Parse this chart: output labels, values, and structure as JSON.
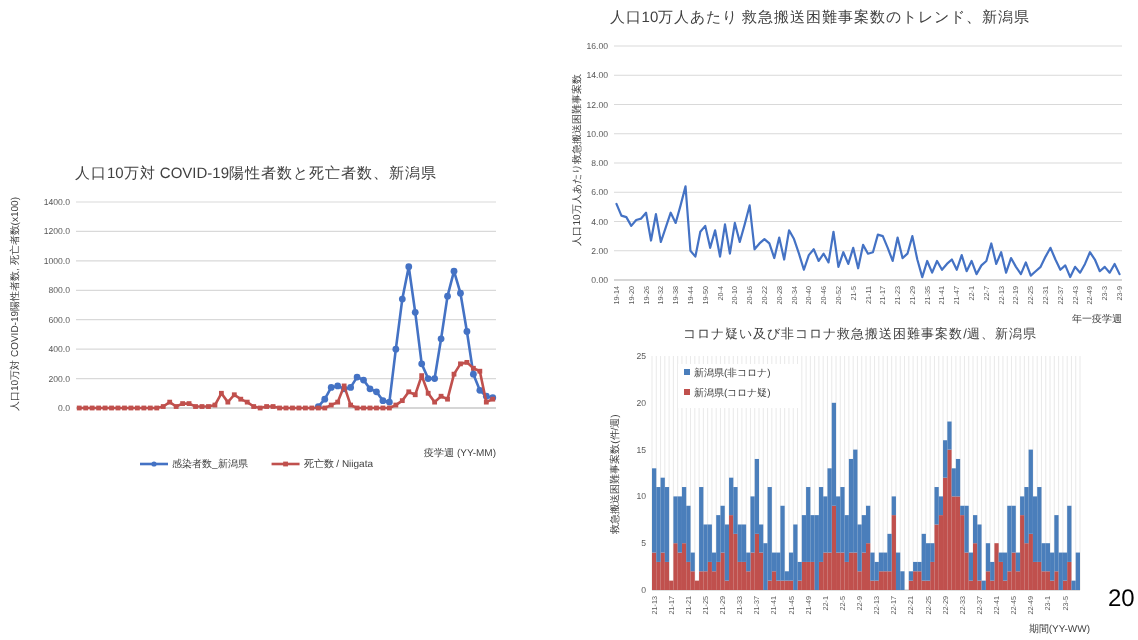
{
  "chart_data": [
    {
      "type": "line",
      "title": "人口10万対 COVID-19陽性者数と死亡者数、新潟県",
      "xlabel": "疫学週 (YY-MM)",
      "ylabel": "人口10万対 COVID-19陽性者数, 死亡者数(x100)",
      "categories": [
        null,
        null,
        null,
        null,
        null,
        null,
        null,
        null,
        null,
        null,
        null,
        null,
        null,
        null,
        null,
        null,
        null,
        null,
        null,
        null,
        null,
        null,
        null,
        null,
        null,
        null,
        null,
        null,
        null,
        null,
        null,
        null,
        null,
        null,
        null,
        null,
        null,
        null,
        null,
        null,
        null,
        null,
        null,
        null,
        null,
        null,
        null,
        null,
        null,
        null,
        null,
        null,
        null,
        null,
        null,
        null,
        null,
        null,
        null,
        null,
        null,
        null,
        null,
        null,
        null
      ],
      "series": [
        {
          "name": "感染者数_新潟県",
          "color": "#4472c4",
          "marker": "circle",
          "values": [
            null,
            null,
            null,
            null,
            null,
            null,
            null,
            null,
            null,
            null,
            null,
            null,
            null,
            null,
            null,
            null,
            null,
            null,
            null,
            null,
            null,
            null,
            null,
            null,
            null,
            null,
            null,
            null,
            null,
            null,
            null,
            null,
            null,
            null,
            null,
            null,
            null,
            10,
            60,
            140,
            150,
            130,
            140,
            210,
            190,
            130,
            110,
            50,
            40,
            400,
            740,
            960,
            650,
            300,
            200,
            200,
            470,
            760,
            930,
            780,
            520,
            230,
            120,
            80,
            70
          ]
        },
        {
          "name": "死亡数 / Niigata",
          "color": "#c0504d",
          "marker": "square",
          "values": [
            0,
            0,
            0,
            0,
            0,
            0,
            0,
            0,
            0,
            0,
            0,
            0,
            0,
            10,
            40,
            10,
            30,
            30,
            10,
            10,
            10,
            20,
            100,
            40,
            90,
            60,
            40,
            10,
            0,
            10,
            10,
            0,
            0,
            0,
            0,
            0,
            0,
            0,
            0,
            20,
            40,
            150,
            20,
            0,
            0,
            0,
            0,
            0,
            0,
            20,
            50,
            110,
            90,
            220,
            100,
            40,
            80,
            60,
            230,
            300,
            310,
            270,
            250,
            40,
            60
          ]
        }
      ],
      "ylim": [
        0,
        1400
      ],
      "yticks": [
        {
          "value": 0,
          "label": "0.0"
        },
        {
          "value": 200,
          "label": "200.0"
        },
        {
          "value": 400,
          "label": "400.0"
        },
        {
          "value": 600,
          "label": "600.0"
        },
        {
          "value": 800,
          "label": "800.0"
        },
        {
          "value": 1000,
          "label": "1000.0"
        },
        {
          "value": 1200,
          "label": "1200.0"
        },
        {
          "value": 1400,
          "label": "1400.0"
        }
      ],
      "grid": "y",
      "legend": "bottom"
    },
    {
      "type": "line",
      "title": "人口10万人あたり 救急搬送困難事案数のトレンド、新潟県",
      "xlabel": "年一疫学週",
      "ylabel": "人口10万人あたり救急搬送困難事案数",
      "categories": [
        "19-14",
        null,
        null,
        "19-20",
        null,
        null,
        "19-26",
        null,
        null,
        "19-32",
        null,
        null,
        "19-38",
        null,
        null,
        "19-44",
        null,
        null,
        "19-50",
        null,
        null,
        "20-4",
        null,
        null,
        "20-10",
        null,
        null,
        "20-16",
        null,
        null,
        "20-22",
        null,
        null,
        "20-28",
        null,
        null,
        "20-34",
        null,
        null,
        "20-40",
        null,
        null,
        "20-46",
        null,
        null,
        "20-52",
        null,
        null,
        "21-5",
        null,
        null,
        "21-11",
        null,
        null,
        "21-17",
        null,
        null,
        "21-23",
        null,
        null,
        "21-29",
        null,
        null,
        "21-35",
        null,
        null,
        "21-41",
        null,
        null,
        "21-47",
        null,
        null,
        "22-1",
        null,
        null,
        "22-7",
        null,
        null,
        "22-13",
        null,
        null,
        "22-19",
        null,
        null,
        "22-25",
        null,
        null,
        "22-31",
        null,
        null,
        "22-37",
        null,
        null,
        "22-43",
        null,
        null,
        "22-49",
        null,
        null,
        "23-3",
        null,
        null,
        "23-9"
      ],
      "series": [
        {
          "color": "#4472c4",
          "values": [
            5.2,
            4.4,
            4.3,
            3.7,
            4.1,
            4.2,
            4.6,
            2.7,
            4.5,
            2.6,
            3.6,
            4.6,
            3.9,
            5.1,
            6.4,
            2.0,
            1.6,
            3.3,
            3.7,
            2.2,
            3.4,
            1.6,
            3.8,
            1.8,
            3.9,
            2.6,
            3.8,
            5.1,
            2.1,
            2.5,
            2.8,
            2.5,
            1.5,
            2.9,
            1.4,
            3.4,
            2.8,
            1.8,
            0.7,
            1.7,
            2.1,
            1.3,
            1.8,
            1.2,
            3.3,
            0.9,
            1.9,
            1.1,
            2.2,
            0.8,
            2.4,
            1.8,
            1.9,
            3.1,
            3.0,
            2.2,
            1.3,
            2.9,
            1.5,
            1.8,
            3.0,
            1.4,
            0.2,
            1.3,
            0.5,
            1.3,
            0.7,
            1.1,
            1.4,
            0.7,
            1.7,
            0.6,
            1.3,
            0.4,
            1.0,
            1.3,
            2.5,
            1.1,
            1.9,
            0.5,
            1.5,
            0.9,
            0.4,
            1.2,
            0.3,
            0.6,
            0.9,
            1.6,
            2.2,
            1.4,
            0.7,
            1.0,
            0.2,
            0.9,
            0.5,
            1.1,
            1.9,
            1.4,
            0.6,
            0.9,
            0.5,
            1.1,
            0.4
          ]
        }
      ],
      "ylim": [
        0,
        16
      ],
      "yticks": [
        {
          "value": 0,
          "label": "0.00"
        },
        {
          "value": 2,
          "label": "2.00"
        },
        {
          "value": 4,
          "label": "4.00"
        },
        {
          "value": 6,
          "label": "6.00"
        },
        {
          "value": 8,
          "label": "8.00"
        },
        {
          "value": 10,
          "label": "10.00"
        },
        {
          "value": 12,
          "label": "12.00"
        },
        {
          "value": 14,
          "label": "14.00"
        },
        {
          "value": 16,
          "label": "16.00"
        }
      ],
      "grid": "y"
    },
    {
      "type": "bar",
      "stacked": true,
      "title": "コロナ疑い及び非コロナ救急搬送困難事案数/週、新潟県",
      "xlabel": "期間(YY-WW)",
      "ylabel": "救急搬送困難事案数(件/週)",
      "annotations": [
        "20"
      ],
      "categories": [
        "21-13",
        null,
        null,
        null,
        "21-17",
        null,
        null,
        null,
        "21-21",
        null,
        null,
        null,
        "21-25",
        null,
        null,
        null,
        "21-29",
        null,
        null,
        null,
        "21-33",
        null,
        null,
        null,
        "21-37",
        null,
        null,
        null,
        "21-41",
        null,
        null,
        null,
        "21-45",
        null,
        null,
        null,
        "21-49",
        null,
        null,
        null,
        "22-1",
        null,
        null,
        null,
        "22-5",
        null,
        null,
        null,
        "22-9",
        null,
        null,
        null,
        "22-13",
        null,
        null,
        null,
        "22-17",
        null,
        null,
        null,
        "22-21",
        null,
        null,
        null,
        "22-25",
        null,
        null,
        null,
        "22-29",
        null,
        null,
        null,
        "22-33",
        null,
        null,
        null,
        "22-37",
        null,
        null,
        null,
        "22-41",
        null,
        null,
        null,
        "22-45",
        null,
        null,
        null,
        "22-49",
        null,
        null,
        null,
        "23-1",
        null,
        null,
        null,
        "23-5",
        null,
        null,
        null
      ],
      "series": [
        {
          "name": "新潟県(コロナ疑)",
          "color": "#c0504d",
          "values": [
            4,
            3,
            4,
            3,
            1,
            5,
            4,
            5,
            3,
            2,
            1,
            2,
            2,
            3,
            2,
            3,
            4,
            1,
            8,
            6,
            3,
            3,
            2,
            4,
            6,
            4,
            0,
            1,
            2,
            1,
            1,
            1,
            1,
            0,
            1,
            3,
            3,
            3,
            0,
            3,
            4,
            4,
            9,
            4,
            4,
            3,
            4,
            4,
            2,
            4,
            5,
            1,
            1,
            2,
            2,
            2,
            8,
            0,
            0,
            0,
            1,
            2,
            2,
            1,
            1,
            3,
            7,
            8,
            12,
            15,
            10,
            10,
            8,
            4,
            1,
            5,
            1,
            0,
            2,
            1,
            5,
            3,
            1,
            2,
            4,
            2,
            8,
            5,
            6,
            3,
            3,
            2,
            2,
            1,
            2,
            0,
            1,
            3,
            0,
            0
          ]
        },
        {
          "name": "新潟県(非コロナ)",
          "color": "#4a7ebb",
          "values": [
            9,
            8,
            8,
            8,
            0,
            5,
            6,
            6,
            6,
            2,
            0,
            9,
            5,
            4,
            2,
            5,
            5,
            6,
            4,
            5,
            4,
            4,
            2,
            6,
            8,
            3,
            5,
            10,
            2,
            3,
            8,
            1,
            3,
            7,
            2,
            5,
            8,
            5,
            8,
            8,
            6,
            9,
            11,
            6,
            7,
            5,
            10,
            11,
            5,
            4,
            4,
            3,
            2,
            2,
            2,
            4,
            2,
            4,
            2,
            0,
            1,
            1,
            1,
            5,
            4,
            2,
            4,
            2,
            4,
            3,
            3,
            4,
            1,
            5,
            3,
            3,
            6,
            1,
            3,
            2,
            0,
            1,
            3,
            7,
            5,
            2,
            2,
            6,
            9,
            7,
            8,
            3,
            3,
            3,
            6,
            4,
            3,
            6,
            1,
            4
          ]
        }
      ],
      "ylim": [
        0,
        25
      ],
      "yticks": [
        0,
        5,
        10,
        15,
        20,
        25
      ],
      "grid": "x",
      "legend": "top left"
    }
  ]
}
